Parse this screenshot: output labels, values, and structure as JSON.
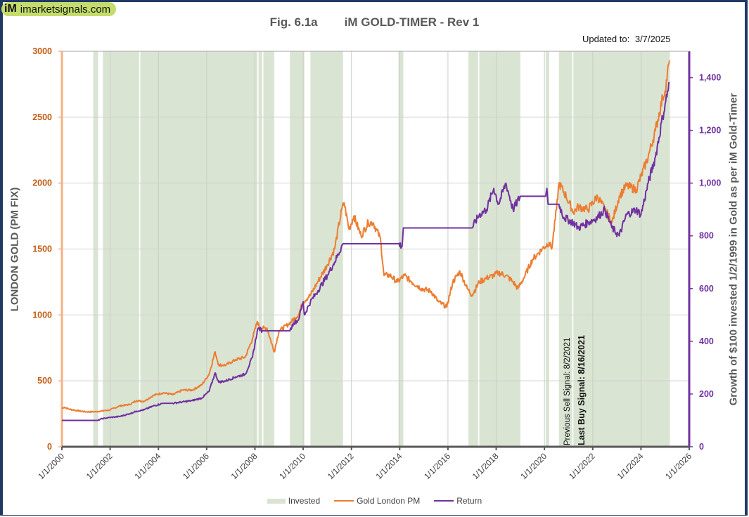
{
  "header": {
    "logo_mark": "iM",
    "logo_text": "imarketsignals.com",
    "fig_label": "Fig. 6.1a",
    "title": "iM GOLD-TIMER  - Rev 1",
    "updated_label": "Updated to:",
    "updated_date": "3/7/2025"
  },
  "colors": {
    "gold": "#ed7d31",
    "return": "#7030a0",
    "invested": "#dae4d3",
    "left_axis": "#f4b183",
    "left_ticks": "#c55a11",
    "right_axis": "#7030a0"
  },
  "annotations": {
    "prev_sell": "Previous Sell Signal:  8/2/2021",
    "last_buy": "Last Buy Signal:  8/16/2021"
  },
  "chart_data": {
    "type": "line",
    "title": "iM GOLD-TIMER - Rev 1",
    "xlabel": "",
    "ylabel_left": "LONDON GOLD (PM FIX)",
    "ylabel_right": "Growth of $100 invested 1/2/1999 in Gold as per iM Gold-Timer",
    "x_range": [
      2000,
      2026
    ],
    "ylim_left": [
      0,
      3000
    ],
    "ylim_right": [
      0,
      1500
    ],
    "grid": true,
    "legend_position": "bottom",
    "x_ticks": [
      "1/1/2000",
      "1/1/2002",
      "1/1/2004",
      "1/1/2006",
      "1/1/2008",
      "1/1/2010",
      "1/1/2012",
      "1/1/2014",
      "1/1/2016",
      "1/1/2018",
      "1/1/2020",
      "1/1/2022",
      "1/1/2024",
      "1/1/2026"
    ],
    "y_ticks_left": [
      "0",
      "500",
      "1000",
      "1500",
      "2000",
      "2500",
      "3000"
    ],
    "y_ticks_right": [
      "0",
      "200",
      "400",
      "600",
      "800",
      "1,000",
      "1,200",
      "1,400"
    ],
    "legend": [
      "Invested",
      "Gold London PM",
      "Return"
    ],
    "invested_periods": [
      [
        2001.3,
        2001.5
      ],
      [
        2001.7,
        2003.2
      ],
      [
        2003.25,
        2008.1
      ],
      [
        2008.15,
        2008.3
      ],
      [
        2008.35,
        2008.8
      ],
      [
        2009.45,
        2010.05
      ],
      [
        2010.3,
        2011.65
      ],
      [
        2013.95,
        2014.15
      ],
      [
        2016.85,
        2017.25
      ],
      [
        2017.3,
        2019.0
      ],
      [
        2020.05,
        2020.2
      ],
      [
        2020.6,
        2021.15
      ],
      [
        2021.2,
        2025.2
      ]
    ],
    "series": [
      {
        "name": "Gold London PM",
        "axis": "left",
        "x": [
          2000.0,
          2000.1,
          2000.3,
          2000.6,
          2001.0,
          2001.3,
          2001.6,
          2002.0,
          2002.4,
          2002.8,
          2003.1,
          2003.4,
          2003.8,
          2004.2,
          2004.6,
          2005.0,
          2005.4,
          2005.8,
          2006.1,
          2006.35,
          2006.5,
          2006.8,
          2007.2,
          2007.6,
          2007.9,
          2008.1,
          2008.2,
          2008.5,
          2008.8,
          2009.0,
          2009.4,
          2009.8,
          2010.0,
          2010.3,
          2010.6,
          2011.0,
          2011.3,
          2011.6,
          2011.7,
          2011.9,
          2012.1,
          2012.4,
          2012.7,
          2012.9,
          2013.2,
          2013.35,
          2013.6,
          2013.9,
          2014.2,
          2014.5,
          2014.9,
          2015.3,
          2015.6,
          2015.95,
          2016.2,
          2016.5,
          2016.8,
          2017.0,
          2017.3,
          2017.6,
          2017.9,
          2018.1,
          2018.4,
          2018.7,
          2018.9,
          2019.2,
          2019.5,
          2019.9,
          2020.2,
          2020.3,
          2020.5,
          2020.6,
          2020.9,
          2021.2,
          2021.4,
          2021.8,
          2022.2,
          2022.5,
          2022.8,
          2023.1,
          2023.4,
          2023.8,
          2024.0,
          2024.3,
          2024.6,
          2024.9,
          2025.0,
          2025.18
        ],
        "values": [
          290,
          300,
          285,
          275,
          265,
          265,
          270,
          280,
          310,
          320,
          350,
          345,
          390,
          410,
          395,
          430,
          430,
          470,
          550,
          720,
          620,
          620,
          660,
          680,
          820,
          950,
          900,
          900,
          720,
          880,
          930,
          1000,
          1100,
          1150,
          1250,
          1380,
          1500,
          1800,
          1850,
          1650,
          1750,
          1600,
          1700,
          1700,
          1580,
          1300,
          1300,
          1250,
          1300,
          1250,
          1200,
          1180,
          1100,
          1060,
          1250,
          1330,
          1200,
          1150,
          1250,
          1280,
          1300,
          1320,
          1300,
          1250,
          1200,
          1300,
          1420,
          1500,
          1550,
          1500,
          1800,
          2000,
          1900,
          1780,
          1820,
          1800,
          1900,
          1800,
          1700,
          1900,
          1980,
          1950,
          2050,
          2200,
          2400,
          2650,
          2700,
          2930
        ]
      },
      {
        "name": "Return",
        "axis": "right",
        "x": [
          2000.0,
          2001.5,
          2001.6,
          2001.9,
          2002.4,
          2002.8,
          2003.1,
          2003.4,
          2003.8,
          2004.2,
          2004.6,
          2005.0,
          2005.4,
          2005.8,
          2006.1,
          2006.35,
          2006.5,
          2006.8,
          2007.2,
          2007.6,
          2007.9,
          2008.1,
          2008.15,
          2008.3,
          2008.4,
          2008.8,
          2009.45,
          2009.6,
          2009.8,
          2010.0,
          2010.05,
          2010.3,
          2010.6,
          2011.0,
          2011.3,
          2011.65,
          2013.95,
          2014.1,
          2014.15,
          2016.85,
          2017.0,
          2017.3,
          2017.6,
          2017.9,
          2018.1,
          2018.4,
          2018.7,
          2019.0,
          2020.05,
          2020.1,
          2020.15,
          2020.2,
          2020.6,
          2020.8,
          2021.2,
          2021.4,
          2021.8,
          2022.2,
          2022.5,
          2022.8,
          2023.1,
          2023.4,
          2023.8,
          2024.0,
          2024.3,
          2024.6,
          2024.9,
          2025.0,
          2025.18
        ],
        "values": [
          100,
          100,
          105,
          110,
          115,
          125,
          135,
          140,
          155,
          165,
          165,
          170,
          175,
          185,
          210,
          280,
          245,
          250,
          265,
          275,
          340,
          440,
          450,
          440,
          440,
          440,
          440,
          470,
          480,
          550,
          500,
          550,
          590,
          650,
          700,
          770,
          770,
          760,
          830,
          830,
          830,
          880,
          900,
          980,
          920,
          1000,
          900,
          950,
          950,
          980,
          920,
          920,
          920,
          870,
          850,
          830,
          850,
          870,
          900,
          830,
          800,
          880,
          900,
          880,
          1000,
          1100,
          1250,
          1300,
          1380
        ]
      }
    ]
  }
}
